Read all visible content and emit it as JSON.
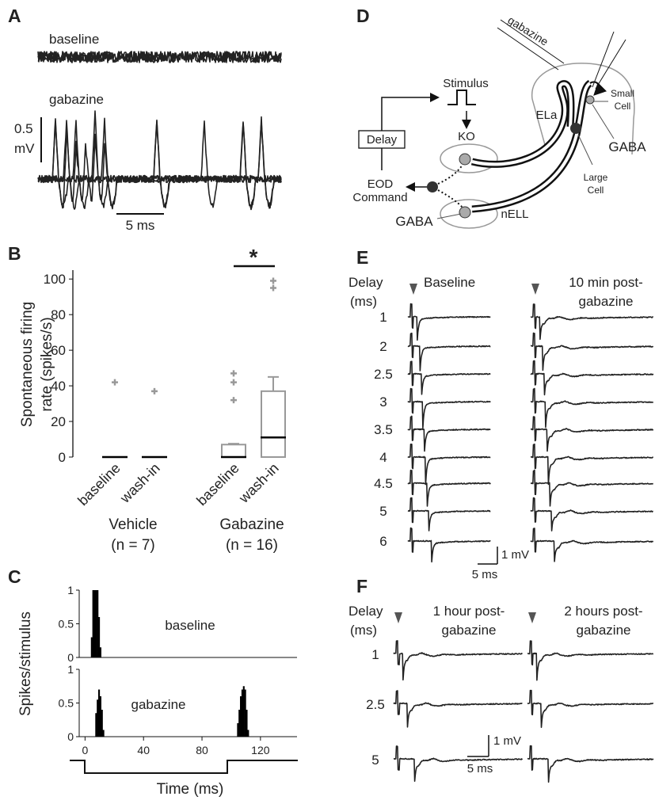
{
  "panel_a": {
    "letter": "A",
    "baseline": "baseline",
    "gabazine": "gabazine",
    "scale_v": "0.5",
    "scale_unit": "mV",
    "scale_t": "5 ms"
  },
  "chart_data": [
    {
      "type": "box",
      "letter": "B",
      "ylabel": [
        "Spontaneous firing",
        "rate (spikes/s)"
      ],
      "ylim": [
        0,
        105
      ],
      "yticks": [
        0,
        20,
        40,
        60,
        80,
        100
      ],
      "categories": [
        "baseline",
        "wash-in",
        "baseline",
        "wash-in"
      ],
      "groups": [
        {
          "name": "Vehicle",
          "n": "(n = 7)"
        },
        {
          "name": "Gabazine",
          "n": "(n = 16)"
        }
      ],
      "significance": "*",
      "outlier_color": "#999999",
      "boxes": [
        {
          "color": "#000000",
          "median_color": "#000000",
          "min": 0,
          "q1": 0,
          "median": 0,
          "q3": 0,
          "max": 0,
          "outliers": [
            42
          ]
        },
        {
          "color": "#000000",
          "median_color": "#000000",
          "min": 0,
          "q1": 0,
          "median": 0,
          "q3": 0,
          "max": 0,
          "outliers": [
            37
          ]
        },
        {
          "color": "#999999",
          "median_color": "#000000",
          "min": 0,
          "q1": 0,
          "median": 0,
          "q3": 7,
          "max": 7.5,
          "outliers": [
            32,
            42,
            47
          ]
        },
        {
          "color": "#999999",
          "median_color": "#000000",
          "min": 0,
          "q1": 0,
          "median": 11,
          "q3": 37,
          "max": 45,
          "outliers": [
            95,
            99
          ]
        }
      ]
    },
    {
      "type": "bar",
      "letter": "C",
      "ylabel": "Spikes/stimulus",
      "xlabel": "Time (ms)",
      "xlim": [
        -4,
        145
      ],
      "xticks": [
        0,
        40,
        80,
        120
      ],
      "ylim": [
        0,
        1
      ],
      "yticks": [
        0,
        0.5,
        1
      ],
      "color": "#000000",
      "panels": [
        {
          "name": "baseline",
          "x": [
            4,
            5,
            6,
            7,
            8,
            9,
            10
          ],
          "values": [
            0.3,
            1,
            1,
            1,
            1,
            0.6,
            0.15
          ]
        },
        {
          "name": "gabazine",
          "x": [
            7,
            8,
            9,
            10,
            11,
            12,
            104,
            105,
            106,
            107,
            108,
            109,
            110,
            111
          ],
          "values": [
            0.35,
            0.55,
            0.7,
            0.6,
            0.4,
            0.1,
            0.2,
            0.4,
            0.6,
            0.7,
            0.75,
            0.7,
            0.4,
            0.1
          ]
        }
      ]
    }
  ],
  "diagram": {
    "letter": "D",
    "labels": [
      "gabazine",
      "Stimulus",
      "KO",
      "Delay",
      "EOD",
      "Command",
      "GABA",
      "nELL",
      "ELa",
      "Small",
      "Cell",
      "GABA",
      "Large",
      "Cell"
    ]
  },
  "panel_e": {
    "letter": "E",
    "delay": "Delay",
    "unit": "(ms)",
    "col1": "Baseline",
    "col2": [
      "10 min post-",
      "gabazine"
    ],
    "delays": [
      "1",
      "2",
      "2.5",
      "3",
      "3.5",
      "4",
      "4.5",
      "5",
      "6"
    ],
    "scale_v": "1 mV",
    "scale_t": "5 ms"
  },
  "panel_f": {
    "letter": "F",
    "delay": "Delay",
    "unit": "(ms)",
    "col1": [
      "1 hour post-",
      "gabazine"
    ],
    "col2": [
      "2 hours post-",
      "gabazine"
    ],
    "delays": [
      "1",
      "2.5",
      "5"
    ],
    "scale_v": "1 mV",
    "scale_t": "5 ms"
  }
}
